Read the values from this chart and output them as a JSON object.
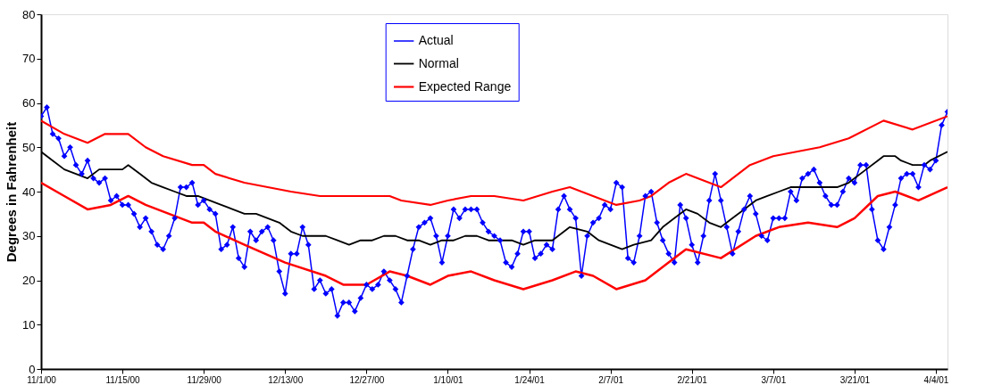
{
  "chart_data": {
    "type": "line",
    "ylabel": "Degrees in Fahrenheit",
    "xlim": [
      "2000-11-01",
      "2001-04-06"
    ],
    "xticks": [
      {
        "value": "2000-11-01",
        "label": "11/1/00"
      },
      {
        "value": "2000-11-15",
        "label": "11/15/00"
      },
      {
        "value": "2000-11-29",
        "label": "11/29/00"
      },
      {
        "value": "2000-12-13",
        "label": "12/13/00"
      },
      {
        "value": "2000-12-27",
        "label": "12/27/00"
      },
      {
        "value": "2001-01-10",
        "label": "1/10/01"
      },
      {
        "value": "2001-01-24",
        "label": "1/24/01"
      },
      {
        "value": "2001-02-07",
        "label": "2/7/01"
      },
      {
        "value": "2001-02-21",
        "label": "2/21/01"
      },
      {
        "value": "2001-03-07",
        "label": "3/7/01"
      },
      {
        "value": "2001-03-21",
        "label": "3/21/01"
      },
      {
        "value": "2001-04-04",
        "label": "4/4/01"
      }
    ],
    "ylim": [
      0,
      80
    ],
    "yticks": [
      0,
      10,
      20,
      30,
      40,
      50,
      60,
      70,
      80
    ],
    "grid": false,
    "legend": "top",
    "line_style": "solid",
    "x": [
      "2000-11-01",
      "2000-11-02",
      "2000-11-03",
      "2000-11-04",
      "2000-11-05",
      "2000-11-06",
      "2000-11-07",
      "2000-11-08",
      "2000-11-09",
      "2000-11-10",
      "2000-11-11",
      "2000-11-12",
      "2000-11-13",
      "2000-11-14",
      "2000-11-15",
      "2000-11-16",
      "2000-11-17",
      "2000-11-18",
      "2000-11-19",
      "2000-11-20",
      "2000-11-21",
      "2000-11-22",
      "2000-11-23",
      "2000-11-24",
      "2000-11-25",
      "2000-11-26",
      "2000-11-27",
      "2000-11-28",
      "2000-11-29",
      "2000-11-30",
      "2000-12-01",
      "2000-12-02",
      "2000-12-03",
      "2000-12-04",
      "2000-12-05",
      "2000-12-06",
      "2000-12-07",
      "2000-12-08",
      "2000-12-09",
      "2000-12-10",
      "2000-12-11",
      "2000-12-12",
      "2000-12-13",
      "2000-12-14",
      "2000-12-15",
      "2000-12-16",
      "2000-12-17",
      "2000-12-18",
      "2000-12-19",
      "2000-12-20",
      "2000-12-21",
      "2000-12-22",
      "2000-12-23",
      "2000-12-24",
      "2000-12-25",
      "2000-12-26",
      "2000-12-27",
      "2000-12-28",
      "2000-12-29",
      "2000-12-30",
      "2000-12-31",
      "2001-01-01",
      "2001-01-02",
      "2001-01-03",
      "2001-01-04",
      "2001-01-05",
      "2001-01-06",
      "2001-01-07",
      "2001-01-08",
      "2001-01-09",
      "2001-01-10",
      "2001-01-11",
      "2001-01-12",
      "2001-01-13",
      "2001-01-14",
      "2001-01-15",
      "2001-01-16",
      "2001-01-17",
      "2001-01-18",
      "2001-01-19",
      "2001-01-20",
      "2001-01-21",
      "2001-01-22",
      "2001-01-23",
      "2001-01-24",
      "2001-01-25",
      "2001-01-26",
      "2001-01-27",
      "2001-01-28",
      "2001-01-29",
      "2001-01-30",
      "2001-01-31",
      "2001-02-01",
      "2001-02-02",
      "2001-02-03",
      "2001-02-04",
      "2001-02-05",
      "2001-02-06",
      "2001-02-07",
      "2001-02-08",
      "2001-02-09",
      "2001-02-10",
      "2001-02-11",
      "2001-02-12",
      "2001-02-13",
      "2001-02-14",
      "2001-02-15",
      "2001-02-16",
      "2001-02-17",
      "2001-02-18",
      "2001-02-19",
      "2001-02-20",
      "2001-02-21",
      "2001-02-22",
      "2001-02-23",
      "2001-02-24",
      "2001-02-25",
      "2001-02-26",
      "2001-02-27",
      "2001-02-28",
      "2001-03-01",
      "2001-03-02",
      "2001-03-03",
      "2001-03-04",
      "2001-03-05",
      "2001-03-06",
      "2001-03-07",
      "2001-03-08",
      "2001-03-09",
      "2001-03-10",
      "2001-03-11",
      "2001-03-12",
      "2001-03-13",
      "2001-03-14",
      "2001-03-15",
      "2001-03-16",
      "2001-03-17",
      "2001-03-18",
      "2001-03-19",
      "2001-03-20",
      "2001-03-21",
      "2001-03-22",
      "2001-03-23",
      "2001-03-24",
      "2001-03-25",
      "2001-03-26",
      "2001-03-27",
      "2001-03-28",
      "2001-03-29",
      "2001-03-30",
      "2001-03-31",
      "2001-04-01",
      "2001-04-02",
      "2001-04-03",
      "2001-04-04",
      "2001-04-05",
      "2001-04-06"
    ],
    "series": [
      {
        "name": "Actual",
        "color": "#0000ff",
        "marker": "diamond",
        "values": [
          57,
          59,
          53,
          52,
          48,
          50,
          46,
          44,
          47,
          43,
          42,
          43,
          38,
          39,
          37,
          37,
          35,
          32,
          34,
          31,
          28,
          27,
          30,
          34,
          41,
          41,
          42,
          37,
          38,
          36,
          35,
          27,
          28,
          32,
          25,
          23,
          31,
          29,
          31,
          32,
          29,
          22,
          17,
          26,
          26,
          32,
          28,
          18,
          20,
          17,
          18,
          12,
          15,
          15,
          13,
          16,
          19,
          18,
          19,
          22,
          20,
          18,
          15,
          21,
          27,
          32,
          33,
          34,
          30,
          24,
          30,
          36,
          34,
          36,
          36,
          36,
          33,
          31,
          30,
          29,
          24,
          23,
          26,
          31,
          31,
          25,
          26,
          28,
          27,
          36,
          39,
          36,
          34,
          21,
          30,
          33,
          34,
          37,
          36,
          42,
          41,
          25,
          24,
          30,
          39,
          40,
          33,
          29,
          26,
          24,
          37,
          34,
          28,
          24,
          30,
          38,
          44,
          38,
          32,
          26,
          31,
          36,
          39,
          35,
          30,
          29,
          34,
          34,
          34,
          40,
          38,
          43,
          44,
          45,
          42,
          39,
          37,
          37,
          40,
          43,
          42,
          46,
          46,
          36,
          29,
          27,
          32,
          37,
          43,
          44,
          44,
          41,
          46,
          45,
          47,
          55,
          58
        ]
      },
      {
        "name": "Normal",
        "color": "#000000",
        "x": [
          "2000-11-01",
          "2000-11-03",
          "2000-11-05",
          "2000-11-07",
          "2000-11-09",
          "2000-11-11",
          "2000-11-15",
          "2000-11-16",
          "2000-11-18",
          "2000-11-20",
          "2000-11-22",
          "2000-11-24",
          "2000-11-26",
          "2000-11-28",
          "2000-11-30",
          "2000-12-02",
          "2000-12-04",
          "2000-12-06",
          "2000-12-08",
          "2000-12-10",
          "2000-12-12",
          "2000-12-14",
          "2000-12-16",
          "2000-12-20",
          "2000-12-22",
          "2000-12-24",
          "2000-12-26",
          "2000-12-28",
          "2000-12-30",
          "2001-01-01",
          "2001-01-03",
          "2001-01-05",
          "2001-01-07",
          "2001-01-09",
          "2001-01-11",
          "2001-01-13",
          "2001-01-15",
          "2001-01-17",
          "2001-01-21",
          "2001-01-23",
          "2001-01-25",
          "2001-01-28",
          "2001-01-31",
          "2001-02-03",
          "2001-02-05",
          "2001-02-07",
          "2001-02-09",
          "2001-02-11",
          "2001-02-14",
          "2001-02-16",
          "2001-02-18",
          "2001-02-20",
          "2001-02-22",
          "2001-02-24",
          "2001-02-26",
          "2001-02-28",
          "2001-03-02",
          "2001-03-04",
          "2001-03-06",
          "2001-03-08",
          "2001-03-10",
          "2001-03-18",
          "2001-03-20",
          "2001-03-21",
          "2001-03-23",
          "2001-03-25",
          "2001-03-26",
          "2001-03-28",
          "2001-03-29",
          "2001-03-31",
          "2001-04-02",
          "2001-04-03",
          "2001-04-06"
        ],
        "values": [
          49,
          47,
          45,
          44,
          43,
          45,
          45,
          46,
          44,
          42,
          41,
          40,
          39,
          39,
          38,
          37,
          36,
          35,
          35,
          34,
          33,
          31,
          30,
          30,
          29,
          28,
          29,
          29,
          30,
          30,
          29,
          29,
          28,
          29,
          29,
          30,
          30,
          29,
          29,
          28,
          29,
          29,
          32,
          31,
          29,
          28,
          27,
          28,
          29,
          32,
          34,
          36,
          35,
          33,
          32,
          34,
          36,
          38,
          39,
          40,
          41,
          41,
          42,
          43,
          45,
          47,
          48,
          48,
          47,
          46,
          46,
          47,
          49
        ]
      },
      {
        "name": "Expected Range",
        "color": "#ff0000",
        "x": [
          "2000-11-01",
          "2000-11-05",
          "2000-11-09",
          "2000-11-12",
          "2000-11-16",
          "2000-11-19",
          "2000-11-22",
          "2000-11-27",
          "2000-11-29",
          "2000-12-01",
          "2000-12-06",
          "2000-12-10",
          "2000-12-14",
          "2000-12-19",
          "2000-12-23",
          "2000-12-27",
          "2000-12-31",
          "2001-01-02",
          "2001-01-07",
          "2001-01-10",
          "2001-01-14",
          "2001-01-18",
          "2001-01-23",
          "2001-01-28",
          "2001-01-31",
          "2001-02-04",
          "2001-02-08",
          "2001-02-12",
          "2001-02-14",
          "2001-02-17",
          "2001-02-20",
          "2001-02-26",
          "2001-03-03",
          "2001-03-07",
          "2001-03-11",
          "2001-03-15",
          "2001-03-20",
          "2001-03-26",
          "2001-03-31",
          "2001-04-06"
        ],
        "values": [
          56,
          53,
          51,
          53,
          53,
          50,
          48,
          46,
          46,
          44,
          42,
          41,
          40,
          39,
          39,
          39,
          39,
          38,
          37,
          38,
          39,
          39,
          38,
          40,
          41,
          39,
          37,
          38,
          39,
          42,
          44,
          41,
          46,
          48,
          49,
          50,
          52,
          56,
          54,
          57
        ]
      },
      {
        "color": "#ff0000",
        "x": [
          "2000-11-01",
          "2000-11-05",
          "2000-11-09",
          "2000-11-13",
          "2000-11-16",
          "2000-11-19",
          "2000-11-23",
          "2000-11-27",
          "2000-11-29",
          "2000-12-01",
          "2000-12-06",
          "2000-12-13",
          "2000-12-20",
          "2000-12-23",
          "2000-12-27",
          "2000-12-31",
          "2001-01-03",
          "2001-01-07",
          "2001-01-10",
          "2001-01-14",
          "2001-01-18",
          "2001-01-23",
          "2001-01-28",
          "2001-02-01",
          "2001-02-04",
          "2001-02-08",
          "2001-02-13",
          "2001-02-17",
          "2001-02-20",
          "2001-02-26",
          "2001-03-04",
          "2001-03-08",
          "2001-03-13",
          "2001-03-18",
          "2001-03-21",
          "2001-03-25",
          "2001-03-28",
          "2001-04-01",
          "2001-04-06"
        ],
        "values": [
          42,
          39,
          36,
          37,
          39,
          37,
          35,
          33,
          33,
          31,
          28,
          24,
          21,
          19,
          19,
          22,
          21,
          19,
          21,
          22,
          20,
          18,
          20,
          22,
          21,
          18,
          20,
          24,
          27,
          25,
          30,
          32,
          33,
          32,
          34,
          39,
          40,
          38,
          41
        ]
      }
    ]
  }
}
